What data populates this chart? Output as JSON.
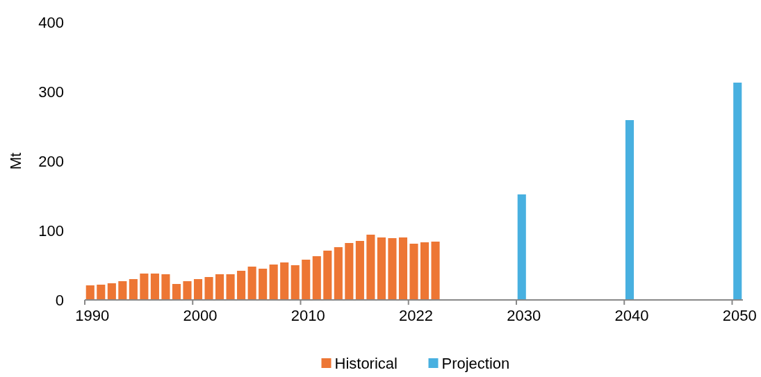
{
  "chart_data": {
    "type": "bar",
    "ylabel": "Mt",
    "categories": [
      "1990",
      null,
      null,
      null,
      null,
      null,
      null,
      null,
      null,
      null,
      "2000",
      null,
      null,
      null,
      null,
      null,
      null,
      null,
      null,
      null,
      "2010",
      null,
      null,
      null,
      null,
      null,
      null,
      null,
      null,
      null,
      "2022",
      null,
      null,
      null,
      null,
      null,
      null,
      null,
      null,
      null,
      "2030",
      null,
      null,
      null,
      null,
      null,
      null,
      null,
      null,
      null,
      "2040",
      null,
      null,
      null,
      null,
      null,
      null,
      null,
      null,
      null,
      "2050"
    ],
    "series": [
      {
        "name": "Historical",
        "color": "#ed7634",
        "values": [
          21,
          22,
          24,
          27,
          30,
          38,
          38,
          37,
          23,
          27,
          30,
          33,
          37,
          37,
          42,
          48,
          45,
          51,
          54,
          50,
          58,
          63,
          71,
          76,
          82,
          85,
          94,
          90,
          89,
          90,
          81,
          83,
          84,
          null,
          null,
          null,
          null,
          null,
          null,
          null,
          null,
          null,
          null,
          null,
          null,
          null,
          null,
          null,
          null,
          null,
          null,
          null,
          null,
          null,
          null,
          null,
          null,
          null,
          null,
          null,
          null
        ]
      },
      {
        "name": "Projection",
        "color": "#48b0e0",
        "values": [
          null,
          null,
          null,
          null,
          null,
          null,
          null,
          null,
          null,
          null,
          null,
          null,
          null,
          null,
          null,
          null,
          null,
          null,
          null,
          null,
          null,
          null,
          null,
          null,
          null,
          null,
          null,
          null,
          null,
          null,
          null,
          null,
          null,
          null,
          null,
          null,
          null,
          null,
          null,
          null,
          152,
          null,
          null,
          null,
          null,
          null,
          null,
          null,
          null,
          null,
          259,
          null,
          null,
          null,
          null,
          null,
          null,
          null,
          null,
          null,
          313
        ]
      }
    ],
    "ylim": [
      0,
      400
    ],
    "yticks": [
      0,
      100,
      200,
      300,
      400
    ],
    "grid": false,
    "legend": "bottom"
  }
}
